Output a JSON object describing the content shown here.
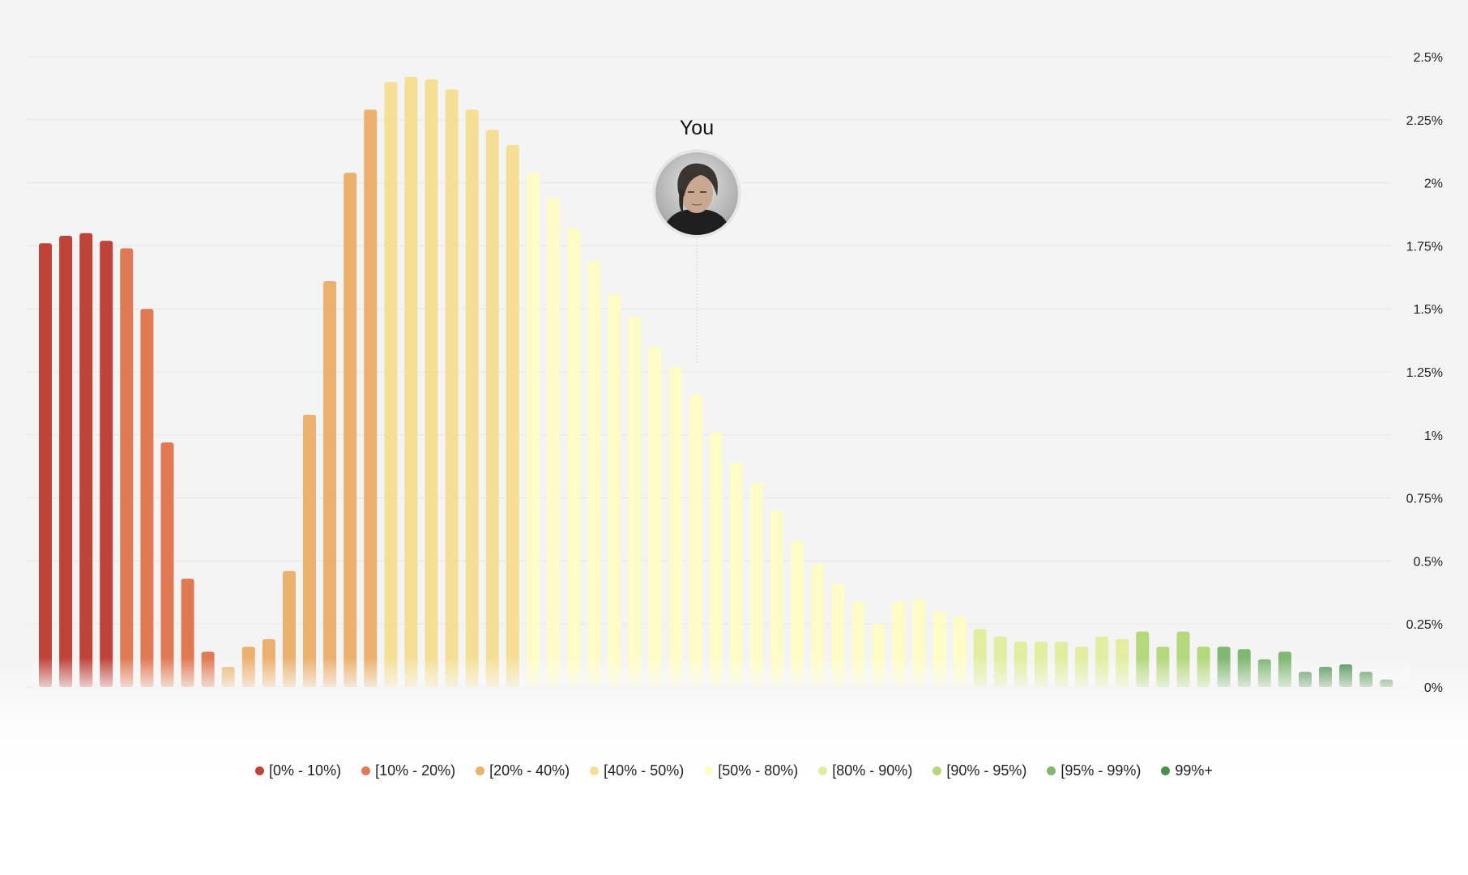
{
  "marker": {
    "label": "You",
    "avatar_icon": "user-portrait-avatar"
  },
  "legend": [
    {
      "label": "[0% - 10%)",
      "color": "#c0433a"
    },
    {
      "label": "[10% - 20%)",
      "color": "#e07a54"
    },
    {
      "label": "[20% - 40%)",
      "color": "#ecb16f"
    },
    {
      "label": "[40% - 50%)",
      "color": "#f5df95"
    },
    {
      "label": "[50% - 80%)",
      "color": "#fefcc6"
    },
    {
      "label": "[80% - 90%)",
      "color": "#e2eda0"
    },
    {
      "label": "[90% - 95%)",
      "color": "#b4d87c"
    },
    {
      "label": "[95% - 99%)",
      "color": "#80b772"
    },
    {
      "label": "99%+",
      "color": "#4b8f4e"
    }
  ],
  "chart_data": {
    "type": "bar",
    "ylim": [
      0,
      2.5
    ],
    "y_ticks": [
      "0%",
      "0.25%",
      "0.5%",
      "0.75%",
      "1%",
      "1.25%",
      "1.5%",
      "1.75%",
      "2%",
      "2.25%",
      "2.5%"
    ],
    "y_tick_values": [
      0,
      0.25,
      0.5,
      0.75,
      1,
      1.25,
      1.5,
      1.75,
      2,
      2.25,
      2.5
    ],
    "grid": true,
    "legend_position": "bottom",
    "marker_bar_index": 32,
    "values": [
      1.76,
      1.79,
      1.8,
      1.77,
      1.74,
      1.5,
      0.97,
      0.43,
      0.14,
      0.08,
      0.16,
      0.19,
      0.46,
      1.08,
      1.61,
      2.04,
      2.29,
      2.4,
      2.42,
      2.41,
      2.37,
      2.29,
      2.21,
      2.15,
      2.04,
      1.94,
      1.82,
      1.69,
      1.56,
      1.47,
      1.35,
      1.27,
      1.16,
      1.01,
      0.89,
      0.81,
      0.7,
      0.58,
      0.49,
      0.41,
      0.34,
      0.25,
      0.34,
      0.35,
      0.3,
      0.28,
      0.23,
      0.2,
      0.18,
      0.18,
      0.18,
      0.16,
      0.2,
      0.19,
      0.22,
      0.16,
      0.22,
      0.16,
      0.16,
      0.15,
      0.11,
      0.14,
      0.06,
      0.08,
      0.09,
      0.06,
      0.03
    ],
    "bucket_of_bar": [
      0,
      0,
      0,
      0,
      1,
      1,
      1,
      1,
      1,
      2,
      2,
      2,
      2,
      2,
      2,
      2,
      2,
      3,
      3,
      3,
      3,
      3,
      3,
      3,
      4,
      4,
      4,
      4,
      4,
      4,
      4,
      4,
      4,
      4,
      4,
      4,
      4,
      4,
      4,
      4,
      4,
      4,
      4,
      4,
      4,
      4,
      5,
      5,
      5,
      5,
      5,
      5,
      5,
      5,
      6,
      6,
      6,
      6,
      7,
      7,
      7,
      7,
      8,
      8,
      8,
      8,
      8
    ]
  }
}
